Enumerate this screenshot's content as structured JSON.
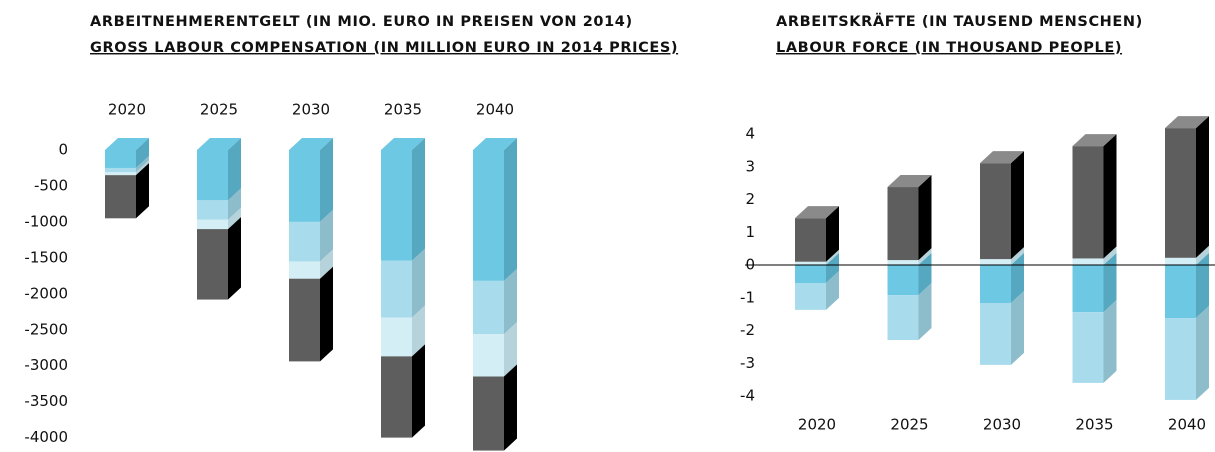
{
  "chart_data": [
    {
      "type": "stacked-bar-3d",
      "title": "ARBEITNEHMERENTGELT (IN MIO. EURO IN PREISEN VON 2014)",
      "subtitle": "GROSS LABOUR COMPENSATION (IN MILLION EURO IN 2014 PRICES)",
      "categories": [
        "2020",
        "2025",
        "2030",
        "2035",
        "2040"
      ],
      "series": [
        {
          "color": "#6dc8e3",
          "side_color": "#56a8c0",
          "values": [
            -250,
            -700,
            -1000,
            -1540,
            -1820
          ]
        },
        {
          "color": "#a8dbec",
          "side_color": "#8dbccb",
          "values": [
            -60,
            -270,
            -550,
            -790,
            -740
          ]
        },
        {
          "color": "#d4eef5",
          "side_color": "#b6d3dc",
          "values": [
            -40,
            -130,
            -240,
            -540,
            -590
          ]
        },
        {
          "color": "#5e5e5e",
          "side_color": "#000000",
          "top_color": "#8a8a8a",
          "values": [
            -600,
            -980,
            -1150,
            -1130,
            -1030
          ]
        }
      ],
      "ylim": [
        -4200,
        0
      ],
      "yticks": [
        0,
        -500,
        -1000,
        -1500,
        -2000,
        -2500,
        -3000,
        -3500,
        -4000
      ],
      "xaxis": "top",
      "zero_line": false
    },
    {
      "type": "stacked-bar-3d",
      "title": "ARBEITSKRÄFTE (IN TAUSEND MENSCHEN)",
      "subtitle": "LABOUR FORCE (IN THOUSAND PEOPLE)",
      "categories": [
        "2020",
        "2025",
        "2030",
        "2035",
        "2040"
      ],
      "series": [
        {
          "color": "#d4eef5",
          "side_color": "#b6d3dc",
          "values": [
            0.1,
            0.15,
            0.18,
            0.2,
            0.22
          ]
        },
        {
          "color": "#5e5e5e",
          "side_color": "#000000",
          "top_color": "#8a8a8a",
          "values": [
            1.33,
            2.23,
            2.93,
            3.43,
            3.96
          ]
        },
        {
          "color": "#6dc8e3",
          "side_color": "#56a8c0",
          "values": [
            -0.55,
            -0.92,
            -1.16,
            -1.44,
            -1.62
          ]
        },
        {
          "color": "#a8dbec",
          "side_color": "#8dbccb",
          "values": [
            -0.82,
            -1.37,
            -1.89,
            -2.16,
            -2.5
          ]
        }
      ],
      "ylim": [
        -4,
        4
      ],
      "yticks": [
        4,
        3,
        2,
        1,
        0,
        -1,
        -2,
        -3,
        -4
      ],
      "xaxis": "bottom",
      "zero_line": true
    }
  ]
}
